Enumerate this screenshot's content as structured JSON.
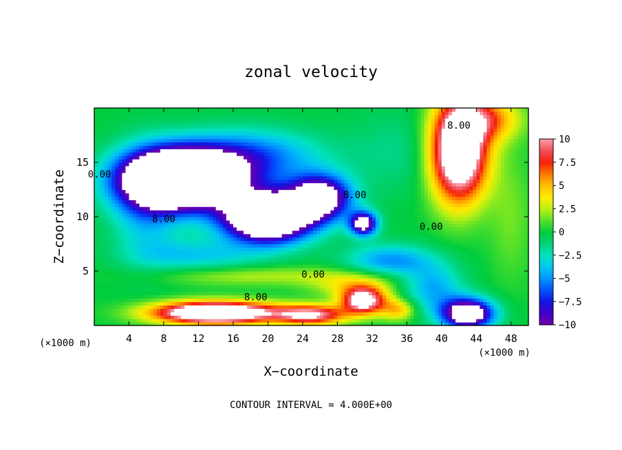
{
  "chart_data": {
    "type": "heatmap",
    "title": "zonal velocity",
    "xlabel": "X−coordinate",
    "ylabel": "Z−coordinate",
    "x_unit": "(×1000 m)",
    "y_unit": "(×1000 m)",
    "xlim": [
      0,
      50
    ],
    "ylim": [
      0,
      20
    ],
    "x_ticks": [
      4,
      8,
      12,
      16,
      20,
      24,
      28,
      32,
      36,
      40,
      44,
      48
    ],
    "y_ticks": [
      5,
      10,
      15
    ],
    "colorbar": {
      "range": [
        -10,
        10
      ],
      "tick_values": [
        10,
        7.5,
        5,
        2.5,
        0,
        -2.5,
        -5,
        -7.5,
        -10
      ],
      "tick_labels": [
        "10",
        "7.5",
        "5",
        "2.5",
        "0",
        "−2.5",
        "−5",
        "−7.5",
        "−10"
      ]
    },
    "contour_interval_text": "CONTOUR INTERVAL = 4.000E+00",
    "contour_labels": [
      {
        "text": "0.00",
        "x": 0.6,
        "z": 13.6
      },
      {
        "text": "8.00",
        "x": 8.0,
        "z": 9.5
      },
      {
        "text": "8.00",
        "x": 30.0,
        "z": 11.7
      },
      {
        "text": "0.00",
        "x": 38.8,
        "z": 8.8
      },
      {
        "text": "8.00",
        "x": 42.0,
        "z": 18.1
      },
      {
        "text": "0.00",
        "x": 25.2,
        "z": 4.4
      },
      {
        "text": "8.00",
        "x": 18.6,
        "z": 2.3
      }
    ],
    "features": [
      {
        "x": 10,
        "z": 13.5,
        "sx": 6.5,
        "sz": 2.6,
        "v": -24
      },
      {
        "x": 20,
        "z": 10,
        "sx": 5,
        "sz": 2.2,
        "v": -20
      },
      {
        "x": 26,
        "z": 11.8,
        "sx": 3.5,
        "sz": 2,
        "v": -13
      },
      {
        "x": 31,
        "z": 9.4,
        "sx": 1.6,
        "sz": 1.1,
        "v": -12
      },
      {
        "x": 18,
        "z": 15.5,
        "sx": 8,
        "sz": 2.5,
        "v": -6
      },
      {
        "x": 42,
        "z": 16,
        "sx": 3.2,
        "sz": 4.5,
        "v": 16
      },
      {
        "x": 45,
        "z": 19,
        "sx": 4,
        "sz": 2,
        "v": 6
      },
      {
        "x": 14,
        "z": 1.2,
        "sx": 7,
        "sz": 1.0,
        "v": 17
      },
      {
        "x": 25,
        "z": 1.0,
        "sx": 4,
        "sz": 0.9,
        "v": 10
      },
      {
        "x": 31,
        "z": 2.3,
        "sx": 2.5,
        "sz": 1.2,
        "v": 12
      },
      {
        "x": 35,
        "z": 1.5,
        "sx": 2.0,
        "sz": 1.0,
        "v": 5
      },
      {
        "x": 43,
        "z": 1.1,
        "sx": 3.0,
        "sz": 1.4,
        "v": -14
      },
      {
        "x": 39,
        "z": 3.5,
        "sx": 3.5,
        "sz": 2.2,
        "v": -4.5
      },
      {
        "x": 34,
        "z": 6.0,
        "sx": 5,
        "sz": 1.5,
        "v": -5
      },
      {
        "x": 12,
        "z": 6.5,
        "sx": 7,
        "sz": 1.5,
        "v": -3.5
      },
      {
        "x": 6,
        "z": 11,
        "sx": 4,
        "sz": 5,
        "v": -4
      },
      {
        "x": 18,
        "z": 4.6,
        "sx": 12,
        "sz": 0.9,
        "v": 2.5
      },
      {
        "x": 30,
        "z": 3.8,
        "sx": 5,
        "sz": 1.2,
        "v": 3.5
      },
      {
        "x": 35,
        "z": 16,
        "sx": 6,
        "sz": 4,
        "v": -1.5
      },
      {
        "x": 48,
        "z": 10,
        "sx": 2.5,
        "sz": 6,
        "v": 1.5
      }
    ]
  }
}
